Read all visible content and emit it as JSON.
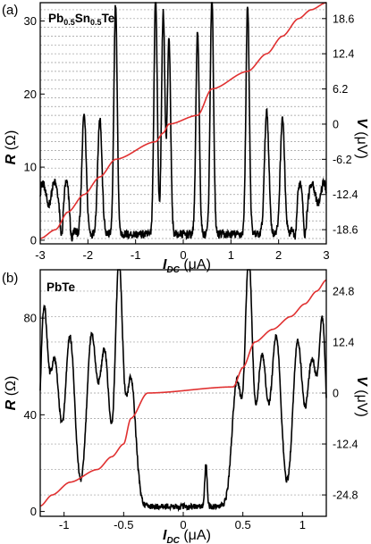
{
  "chart_data": [
    {
      "type": "line",
      "panel_label": "(a)",
      "material": {
        "main": "Pb",
        "sub1": "0.5",
        "mid": "Sn",
        "sub2": "0.5",
        "tail": "Te"
      },
      "xlabel": {
        "main": "I",
        "sub": "DC",
        "unit": " (μA)"
      },
      "ylabel_left": {
        "main": "R",
        "unit": " (Ω)"
      },
      "ylabel_right": {
        "main": "V",
        "unit": " (μV)"
      },
      "xlim": [
        -3,
        3
      ],
      "ylim_left": [
        -0.5,
        32.5
      ],
      "ylim_right": [
        -21.1,
        21.4
      ],
      "x_ticks": [
        "-3",
        "-2",
        "-1",
        "0",
        "1",
        "2",
        "3"
      ],
      "x_tick_values": [
        -3,
        -2,
        -1,
        0,
        1,
        2,
        3
      ],
      "left_ticks": [
        "0",
        "10",
        "20",
        "30"
      ],
      "left_tick_values": [
        0,
        10,
        20,
        30
      ],
      "right_ticks": [
        "18.6",
        "12.4",
        "6.2",
        "0",
        "-6.2",
        "-12.4",
        "-18.6"
      ],
      "right_tick_values": [
        18.6,
        12.4,
        6.2,
        0,
        -6.2,
        -12.4,
        -18.6
      ],
      "grid": "dashed horizontal lines at voltage steps",
      "grid_values": [
        -20.15,
        -18.6,
        -17.05,
        -15.5,
        -13.95,
        -12.4,
        -10.85,
        -9.3,
        -7.75,
        -6.2,
        -4.65,
        -3.1,
        -1.55,
        0,
        1.55,
        3.1,
        4.65,
        6.2,
        7.75,
        9.3,
        10.85,
        12.4,
        13.95,
        15.5,
        17.05,
        18.6,
        20.15
      ],
      "series": [
        {
          "axis": "left",
          "color": "#000000",
          "baseline": 0.8,
          "noise": 0.6,
          "peaks": [
            [
              -2.95,
              7,
              0.08
            ],
            [
              -2.7,
              7,
              0.08
            ],
            [
              -2.45,
              7,
              0.08
            ],
            [
              -2.08,
              16.5,
              0.045
            ],
            [
              -1.75,
              16,
              0.045
            ],
            [
              -1.42,
              31.5,
              0.035
            ],
            [
              -0.58,
              32.5,
              0.035
            ],
            [
              -0.42,
              30.5,
              0.035
            ],
            [
              -0.3,
              27,
              0.035
            ],
            [
              0.3,
              28,
              0.035
            ],
            [
              0.6,
              32.5,
              0.035
            ],
            [
              1.35,
              31.5,
              0.035
            ],
            [
              1.75,
              17,
              0.045
            ],
            [
              2.08,
              16,
              0.045
            ],
            [
              2.45,
              7,
              0.08
            ],
            [
              2.7,
              7,
              0.08
            ],
            [
              2.95,
              7,
              0.08
            ]
          ],
          "dips": [
            [
              -2.55,
              4.5,
              0.03
            ],
            [
              -2.35,
              3.5,
              0.03
            ],
            [
              2.35,
              3.5,
              0.03
            ],
            [
              2.55,
              4.5,
              0.03
            ]
          ]
        },
        {
          "axis": "right",
          "color": "#e03030",
          "plateaus": [
            [
              -3,
              -20.15
            ],
            [
              -2.68,
              -18.6
            ],
            [
              -2.42,
              -15.5
            ],
            [
              -2.08,
              -12.4
            ],
            [
              -1.75,
              -9.3
            ],
            [
              -1.42,
              -6.2
            ],
            [
              -0.58,
              -3.1
            ],
            [
              -0.42,
              -1.55
            ],
            [
              -0.3,
              0
            ],
            [
              0.3,
              1.55
            ],
            [
              0.6,
              6.2
            ],
            [
              1.35,
              9.3
            ],
            [
              1.75,
              12.4
            ],
            [
              2.08,
              15.5
            ],
            [
              2.42,
              18.6
            ],
            [
              2.68,
              20.15
            ],
            [
              3,
              21.4
            ]
          ]
        }
      ]
    },
    {
      "type": "line",
      "panel_label": "(b)",
      "material": {
        "main": "PbTe"
      },
      "xlabel": {
        "main": "I",
        "sub": "DC",
        "unit": " (μA)"
      },
      "ylabel_left": {
        "main": "R",
        "unit": " (Ω)"
      },
      "ylabel_right": {
        "main": "V",
        "unit": " (μV)"
      },
      "xlim": [
        -1.2,
        1.2
      ],
      "ylim_left": [
        -2,
        100
      ],
      "ylim_right": [
        -30.0,
        30.0
      ],
      "x_ticks": [
        "-1",
        "-0.5",
        "0",
        "0.5",
        "1"
      ],
      "x_tick_values": [
        -1,
        -0.5,
        0,
        0.5,
        1
      ],
      "left_ticks": [
        "0",
        "40",
        "80"
      ],
      "left_tick_values": [
        0,
        40,
        80
      ],
      "right_ticks": [
        "24.8",
        "12.4",
        "0",
        "-12.4",
        "-24.8"
      ],
      "right_tick_values": [
        24.8,
        12.4,
        0,
        -12.4,
        -24.8
      ],
      "grid": "dashed horizontal lines at voltage steps",
      "grid_values": [
        -24.8,
        -18.6,
        -12.4,
        -6.2,
        0,
        6.2,
        12.4,
        18.6,
        24.8
      ],
      "series": [
        {
          "axis": "left",
          "color": "#000000",
          "baseline": 2,
          "noise": 1.2,
          "peaks": [
            [
              -1.17,
              78,
              0.03
            ],
            [
              -1.08,
              60,
              0.04
            ],
            [
              -0.95,
              70,
              0.04
            ],
            [
              -0.77,
              70,
              0.04
            ],
            [
              -0.66,
              63,
              0.04
            ],
            [
              -0.54,
              100,
              0.03
            ],
            [
              -0.44,
              53,
              0.04
            ],
            [
              0.19,
              17,
              0.01
            ],
            [
              0.45,
              52,
              0.04
            ],
            [
              0.55,
              100,
              0.03
            ],
            [
              0.66,
              62,
              0.04
            ],
            [
              0.78,
              70,
              0.04
            ],
            [
              0.96,
              68,
              0.04
            ],
            [
              1.08,
              60,
              0.04
            ],
            [
              1.17,
              73,
              0.03
            ]
          ],
          "dips": []
        },
        {
          "axis": "right",
          "color": "#e03030",
          "plateaus": [
            [
              -1.2,
              -27.5
            ],
            [
              -1.1,
              -24.8
            ],
            [
              -0.95,
              -21.7
            ],
            [
              -0.72,
              -18.6
            ],
            [
              -0.6,
              -15.5
            ],
            [
              -0.5,
              -12.4
            ],
            [
              -0.44,
              -6.2
            ],
            [
              -0.3,
              0
            ],
            [
              0.42,
              1.5
            ],
            [
              0.5,
              6.2
            ],
            [
              0.6,
              12.4
            ],
            [
              0.75,
              15.5
            ],
            [
              0.9,
              18.6
            ],
            [
              1.02,
              21.7
            ],
            [
              1.12,
              24.8
            ],
            [
              1.2,
              27.5
            ]
          ]
        }
      ]
    }
  ]
}
